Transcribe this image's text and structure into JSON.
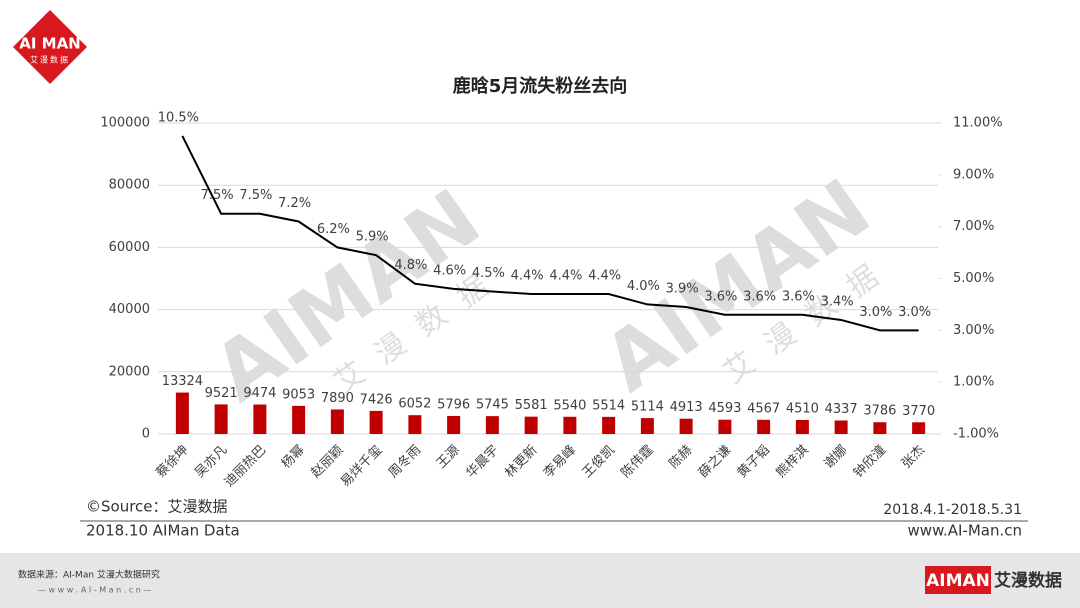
{
  "header": {
    "logo": "AI MAN",
    "logo_sub": "艾漫数据"
  },
  "watermark": "AIMAN",
  "watermark_sub": "艾漫数据",
  "chart_data": {
    "type": "combo",
    "title": "鹿晗5月流失粉丝去向",
    "categories": [
      "蔡徐坤",
      "吴亦凡",
      "迪丽热巴",
      "杨幂",
      "赵丽颖",
      "易烊千玺",
      "周冬雨",
      "王源",
      "华晨宇",
      "林更新",
      "李易峰",
      "王俊凯",
      "陈伟霆",
      "陈赫",
      "薛之谦",
      "黄子韬",
      "熊梓淇",
      "谢娜",
      "钟欣潼",
      "张杰"
    ],
    "series": [
      {
        "type": "bar",
        "color": "#c00000",
        "values": [
          13324,
          9521,
          9474,
          9053,
          7890,
          7426,
          6052,
          5796,
          5745,
          5581,
          5540,
          5514,
          5114,
          4913,
          4593,
          4567,
          4510,
          4337,
          3786,
          3770
        ]
      },
      {
        "type": "line",
        "axis": "y2",
        "color": "#000000",
        "values": [
          10.5,
          7.5,
          7.5,
          7.2,
          6.2,
          5.9,
          4.8,
          4.6,
          4.5,
          4.4,
          4.4,
          4.4,
          4.0,
          3.9,
          3.6,
          3.6,
          3.6,
          3.4,
          3.0,
          3.0
        ],
        "value_labels": [
          "10.5%",
          "7.5%",
          "7.5%",
          "7.2%",
          "6.2%",
          "5.9%",
          "4.8%",
          "4.6%",
          "4.5%",
          "4.4%",
          "4.4%",
          "4.4%",
          "4.0%",
          "3.9%",
          "3.6%",
          "3.6%",
          "3.6%",
          "3.4%",
          "3.0%",
          "3.0%"
        ]
      }
    ],
    "ylim": [
      0,
      100000
    ],
    "yticks": [
      0,
      20000,
      40000,
      60000,
      80000,
      100000
    ],
    "y2lim": [
      -1,
      11
    ],
    "y2ticks": [
      {
        "value": -1,
        "label": "-1.00%"
      },
      {
        "value": 1,
        "label": "1.00%"
      },
      {
        "value": 3,
        "label": "3.00%"
      },
      {
        "value": 5,
        "label": "5.00%"
      },
      {
        "value": 7,
        "label": "7.00%"
      },
      {
        "value": 9,
        "label": "9.00%"
      },
      {
        "value": 11,
        "label": "11.00%"
      }
    ],
    "grid": true
  },
  "notes": {
    "source": "©Source：艾漫数据",
    "period": "2018.4.1-2018.5.31",
    "copyright": "2018.10 AIMan Data",
    "website": "www.AI-Man.cn"
  },
  "footer": {
    "source": "数据来源：AI-Man 艾漫大数据研究",
    "website": "— w w w . A I - M a n . c n —",
    "logo": "AIMAN",
    "logo_sub": "艾漫数据"
  }
}
